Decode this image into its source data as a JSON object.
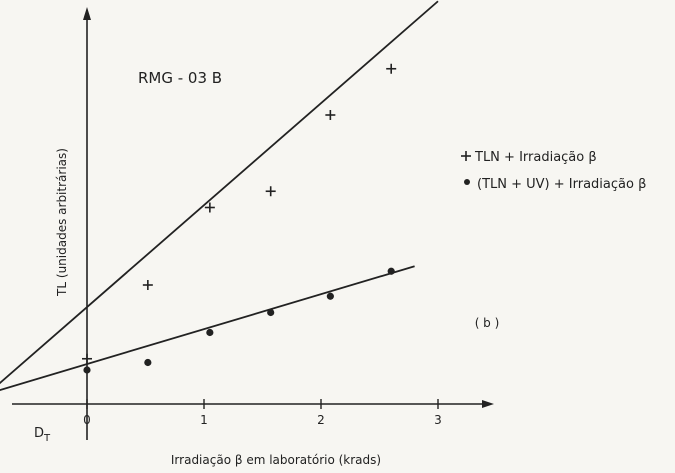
{
  "chart_data": {
    "type": "scatter",
    "annotation": "RMG - 03 B",
    "panel_label": "( b )",
    "xlabel": "Irradiação β em laboratório (krads)",
    "ylabel": "TL (unidades arbitrárias)",
    "x_ticks": [
      "0",
      "1",
      "2",
      "3"
    ],
    "xlim": [
      -0.9,
      3.2
    ],
    "ylim": [
      -0.5,
      12
    ],
    "origin_marker_label": "D",
    "origin_marker_subscript": "T",
    "origin_marker_x": -0.85,
    "series": [
      {
        "name": "TLN + Irradiação β",
        "marker": "plus",
        "color": "#222222",
        "points": [
          {
            "x": 0.0,
            "y": 0.45
          },
          {
            "x": 0.52,
            "y": 3.4
          },
          {
            "x": 1.05,
            "y": 6.5
          },
          {
            "x": 1.57,
            "y": 7.15
          },
          {
            "x": 2.08,
            "y": 10.2
          },
          {
            "x": 2.6,
            "y": 12.05
          }
        ],
        "fit_line": {
          "x0": -0.85,
          "y0": -0.95,
          "x1": 3.0,
          "y1": 14.75
        }
      },
      {
        "name": "(TLN + UV) + Irradiação β",
        "marker": "circle",
        "color": "#222222",
        "points": [
          {
            "x": 0.0,
            "y": 0.0
          },
          {
            "x": 0.52,
            "y": 0.3
          },
          {
            "x": 1.05,
            "y": 1.5
          },
          {
            "x": 1.57,
            "y": 2.3
          },
          {
            "x": 2.08,
            "y": 2.95
          },
          {
            "x": 2.6,
            "y": 3.95
          }
        ],
        "fit_line": {
          "x0": -0.85,
          "y0": -0.95,
          "x1": 2.8,
          "y1": 4.15
        }
      }
    ]
  }
}
